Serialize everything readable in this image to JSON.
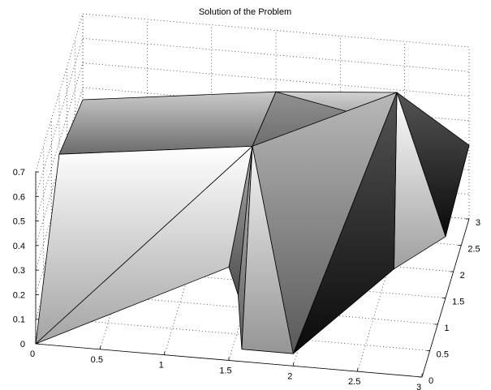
{
  "chart_data": {
    "type": "surface",
    "title": "Solution of the Problem",
    "xlabel": "",
    "ylabel": "",
    "zlabel": "",
    "x_ticks": [
      "0",
      "0.5",
      "1",
      "1.5",
      "2",
      "2.5",
      "3"
    ],
    "y_ticks": [
      "0",
      "0.5",
      "1",
      "1.5",
      "2",
      "2.5",
      "3"
    ],
    "z_ticks": [
      "0",
      "0.1",
      "0.2",
      "0.3",
      "0.4",
      "0.5",
      "0.6",
      "0.7"
    ],
    "xlim": [
      0,
      3
    ],
    "ylim": [
      0,
      3
    ],
    "zlim": [
      0,
      0.7
    ],
    "grid": true,
    "colormap": "gray",
    "faces": [
      {
        "name": "face-left-rear",
        "vertices": [
          [
            0,
            1.5,
            0.45
          ],
          [
            1.5,
            1.5,
            0.55
          ],
          [
            1.5,
            3,
            0.45
          ],
          [
            0,
            3,
            0.35
          ]
        ]
      },
      {
        "name": "face-right-rear",
        "vertices": [
          [
            1.5,
            1.5,
            0.55
          ],
          [
            3,
            1.5,
            0.25
          ],
          [
            3,
            3,
            0.3
          ],
          [
            1.5,
            3,
            0.45
          ]
        ]
      },
      {
        "name": "face-left-front-a",
        "vertices": [
          [
            0,
            0,
            0
          ],
          [
            1.5,
            1.5,
            0.55
          ],
          [
            0,
            1.5,
            0.45
          ]
        ]
      },
      {
        "name": "face-left-front-b",
        "vertices": [
          [
            0,
            0,
            0
          ],
          [
            1.5,
            0,
            0.38
          ],
          [
            1.5,
            1.5,
            0.55
          ]
        ]
      },
      {
        "name": "face-center-fan-1",
        "vertices": [
          [
            1.5,
            0,
            0.38
          ],
          [
            1.5,
            1.5,
            0.55
          ],
          [
            1.45,
            1,
            0.05
          ]
        ]
      },
      {
        "name": "face-center-fan-2",
        "vertices": [
          [
            1.5,
            1.5,
            0.55
          ],
          [
            1.45,
            1,
            0.05
          ],
          [
            1.6,
            0,
            0.05
          ]
        ]
      },
      {
        "name": "face-center-fan-3",
        "vertices": [
          [
            1.5,
            1.5,
            0.55
          ],
          [
            1.6,
            0,
            0.05
          ],
          [
            2,
            0,
            0.05
          ]
        ]
      },
      {
        "name": "face-center-top",
        "vertices": [
          [
            1.5,
            1.5,
            0.55
          ],
          [
            2.5,
            2.5,
            0.6
          ],
          [
            2,
            0,
            0.05
          ]
        ]
      },
      {
        "name": "face-right-fan-1",
        "vertices": [
          [
            2,
            0,
            0.05
          ],
          [
            2.5,
            2.5,
            0.6
          ],
          [
            2.6,
            1.5,
            0.1
          ]
        ]
      },
      {
        "name": "face-right-fan-2",
        "vertices": [
          [
            2.5,
            2.5,
            0.6
          ],
          [
            2.6,
            1.5,
            0.1
          ],
          [
            3,
            1.5,
            0.25
          ]
        ]
      },
      {
        "name": "face-right-fan-3",
        "vertices": [
          [
            2.5,
            2.5,
            0.6
          ],
          [
            3,
            1.5,
            0.25
          ],
          [
            3,
            3,
            0.3
          ]
        ]
      },
      {
        "name": "face-top-back",
        "vertices": [
          [
            1.5,
            1.5,
            0.55
          ],
          [
            1.5,
            3,
            0.45
          ],
          [
            2.5,
            2.5,
            0.6
          ]
        ]
      }
    ]
  }
}
